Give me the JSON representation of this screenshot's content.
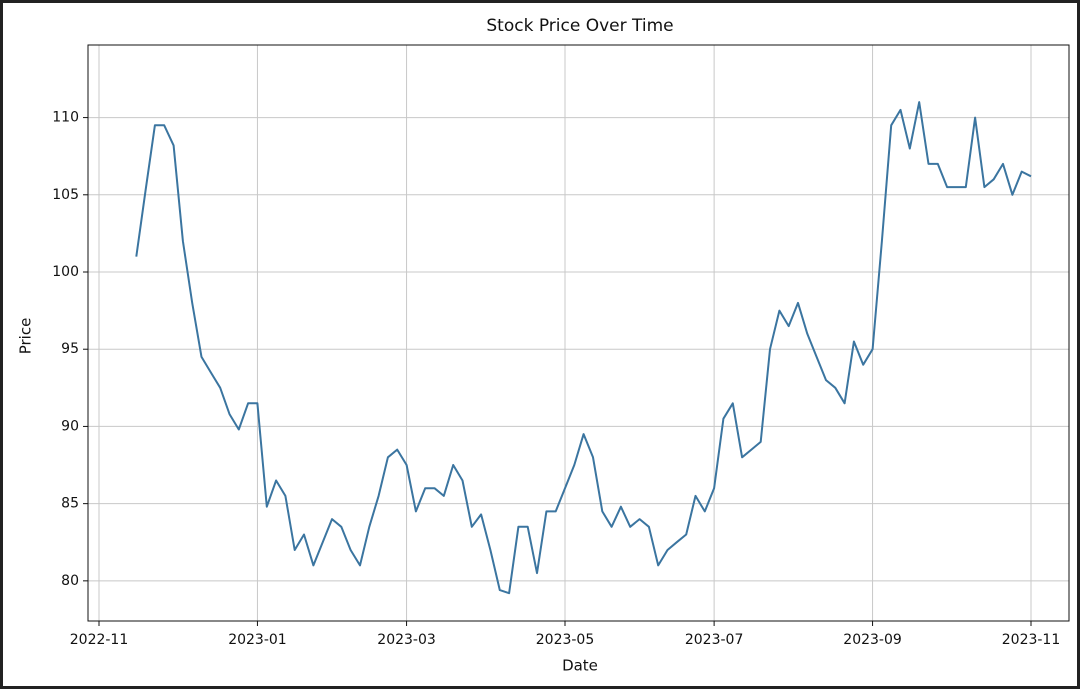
{
  "chart_data": {
    "type": "line",
    "title": "Stock Price Over Time",
    "x_label": "Date",
    "y_label": "Price",
    "categories": [
      "2022-11",
      null,
      null,
      null,
      null,
      null,
      null,
      null,
      null,
      null,
      null,
      null,
      null,
      null,
      null,
      null,
      null,
      "2023-01",
      null,
      null,
      null,
      null,
      null,
      null,
      null,
      null,
      null,
      null,
      null,
      null,
      null,
      null,
      null,
      "2023-03",
      null,
      null,
      null,
      null,
      null,
      null,
      null,
      null,
      null,
      null,
      null,
      null,
      null,
      null,
      null,
      null,
      "2023-05",
      null,
      null,
      null,
      null,
      null,
      null,
      null,
      null,
      null,
      null,
      null,
      null,
      null,
      null,
      null,
      "2023-07",
      null,
      null,
      null,
      null,
      null,
      null,
      null,
      null,
      null,
      null,
      null,
      null,
      null,
      null,
      null,
      null,
      "2023-09",
      null,
      null,
      null,
      null,
      null,
      null,
      null,
      null,
      null,
      null,
      null,
      null,
      null,
      null,
      null,
      null,
      "2023-11"
    ],
    "series": [
      {
        "name": "Price",
        "color": "#3b75a0",
        "values": [
          null,
          null,
          null,
          null,
          101,
          105.3,
          109.5,
          109.5,
          108.2,
          102,
          98,
          94.5,
          93.5,
          92.5,
          90.8,
          89.8,
          91.5,
          91.5,
          84.8,
          86.5,
          85.5,
          82,
          83,
          81,
          82.5,
          84,
          83.5,
          82,
          81,
          83.5,
          85.5,
          88,
          88.5,
          87.5,
          84.5,
          86,
          86,
          85.5,
          87.5,
          86.5,
          83.5,
          84.3,
          82,
          79.4,
          79.2,
          83.5,
          83.5,
          80.5,
          84.5,
          84.5,
          86,
          87.5,
          89.5,
          88,
          84.5,
          83.5,
          84.8,
          83.5,
          84,
          83.5,
          81,
          82,
          82.5,
          83,
          85.5,
          84.5,
          86,
          90.5,
          91.5,
          88,
          88.5,
          89,
          95,
          97.5,
          96.5,
          98,
          96,
          94.5,
          93,
          92.5,
          91.5,
          95.5,
          94,
          95,
          102,
          109.5,
          110.5,
          108,
          111,
          107,
          107,
          105.5,
          105.5,
          105.5,
          110,
          105.5,
          106,
          107,
          105,
          106.5,
          106.2
        ]
      }
    ],
    "ylim": [
      77.4,
      114.7
    ],
    "yticks": [
      80,
      85,
      90,
      95,
      100,
      105,
      110
    ],
    "grid": true
  }
}
